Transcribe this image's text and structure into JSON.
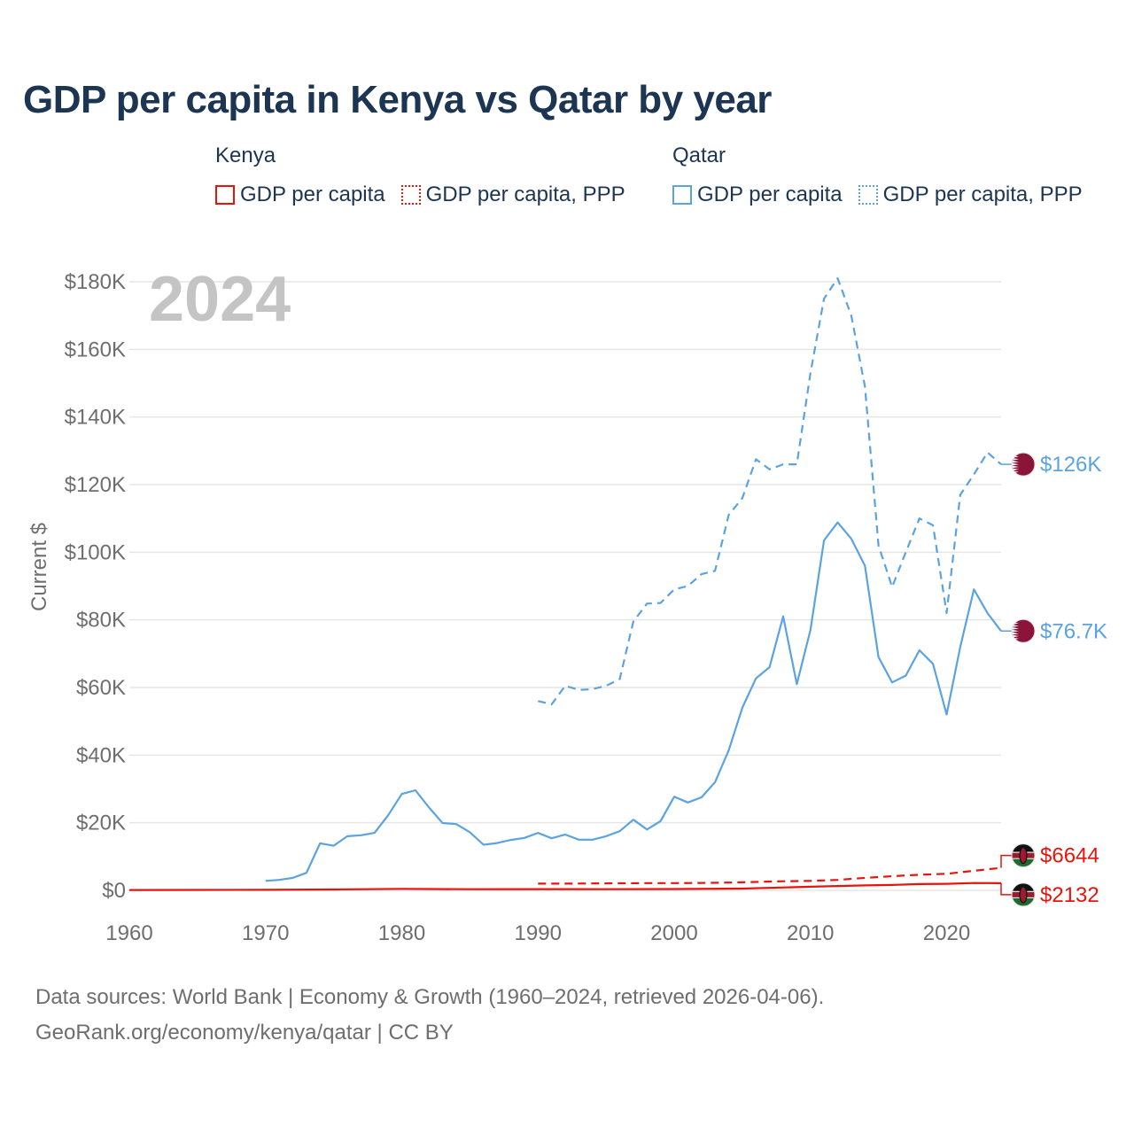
{
  "title": "GDP per capita in Kenya vs Qatar by year",
  "legend": {
    "kenya": {
      "title": "Kenya",
      "items": [
        {
          "label": "GDP per capita",
          "style": "solid",
          "color": "#e8140c"
        },
        {
          "label": "GDP per capita, PPP",
          "style": "dotted",
          "color": "#e8140c"
        }
      ]
    },
    "qatar": {
      "title": "Qatar",
      "items": [
        {
          "label": "GDP per capita",
          "style": "solid",
          "color": "#5ba3e0"
        },
        {
          "label": "GDP per capita, PPP",
          "style": "dotted",
          "color": "#5ba3e0"
        }
      ]
    }
  },
  "year_watermark": "2024",
  "footer": {
    "line1": "Data sources: World Bank | Economy & Growth (1960–2024, retrieved 2026-04-06).",
    "line2": "GeoRank.org/economy/kenya/qatar | CC BY"
  },
  "chart_data": {
    "type": "line",
    "ylabel": "Current $",
    "xlabel": "",
    "xlim": [
      1960,
      2025
    ],
    "ylim": [
      0,
      180000
    ],
    "x_ticks": [
      1960,
      1970,
      1980,
      1990,
      2000,
      2010,
      2020
    ],
    "x_tick_labels": [
      "1960",
      "1970",
      "1980",
      "1990",
      "2000",
      "2010",
      "2020"
    ],
    "y_ticks": [
      0,
      20000,
      40000,
      60000,
      80000,
      100000,
      120000,
      140000,
      160000,
      180000
    ],
    "y_tick_labels": [
      "$0",
      "$20K",
      "$40K",
      "$60K",
      "$80K",
      "$100K",
      "$120K",
      "$140K",
      "$160K",
      "$180K"
    ],
    "grid": true,
    "series": [
      {
        "name": "Qatar GDP per capita, PPP",
        "country": "Qatar",
        "dash": true,
        "color": "#5ba3e0",
        "end_label": "$126K",
        "flag": "qatar",
        "x": [
          1990,
          1991,
          1992,
          1993,
          1994,
          1995,
          1996,
          1997,
          1998,
          1999,
          2000,
          2001,
          2002,
          2003,
          2004,
          2005,
          2006,
          2007,
          2008,
          2009,
          2010,
          2011,
          2012,
          2013,
          2014,
          2015,
          2016,
          2017,
          2018,
          2019,
          2020,
          2021,
          2022,
          2023,
          2024
        ],
        "values": [
          56000,
          55000,
          60500,
          59300,
          59500,
          60500,
          62500,
          79500,
          84800,
          85000,
          89000,
          90000,
          93500,
          94500,
          111000,
          116000,
          127500,
          124500,
          126000,
          126000,
          153000,
          175000,
          181000,
          170000,
          149000,
          102000,
          89700,
          100000,
          110000,
          108000,
          82000,
          117000,
          123000,
          129500,
          126000
        ]
      },
      {
        "name": "Qatar GDP per capita",
        "country": "Qatar",
        "dash": false,
        "color": "#5ba3e0",
        "end_label": "$76.7K",
        "flag": "qatar",
        "x": [
          1970,
          1971,
          1972,
          1973,
          1974,
          1975,
          1976,
          1977,
          1978,
          1979,
          1980,
          1981,
          1982,
          1983,
          1984,
          1985,
          1986,
          1987,
          1988,
          1989,
          1990,
          1991,
          1992,
          1993,
          1994,
          1995,
          1996,
          1997,
          1998,
          1999,
          2000,
          2001,
          2002,
          2003,
          2004,
          2005,
          2006,
          2007,
          2008,
          2009,
          2010,
          2011,
          2012,
          2013,
          2014,
          2015,
          2016,
          2017,
          2018,
          2019,
          2020,
          2021,
          2022,
          2023,
          2024
        ],
        "values": [
          2800,
          3100,
          3700,
          5200,
          13900,
          13200,
          16000,
          16300,
          17000,
          22200,
          28500,
          29600,
          24500,
          19900,
          19600,
          17200,
          13500,
          14000,
          14900,
          15500,
          17000,
          15400,
          16500,
          15000,
          15000,
          16000,
          17500,
          20900,
          18000,
          20500,
          27700,
          26000,
          27500,
          32000,
          41400,
          54000,
          62700,
          66000,
          81000,
          61000,
          77000,
          103500,
          108800,
          104000,
          96000,
          69000,
          61500,
          63500,
          71000,
          67000,
          52000,
          72000,
          89000,
          82000,
          76700
        ]
      },
      {
        "name": "Kenya GDP per capita, PPP",
        "country": "Kenya",
        "dash": true,
        "color": "#e8140c",
        "end_label": "$6644",
        "flag": "kenya",
        "x": [
          1990,
          1992,
          1994,
          1996,
          1998,
          2000,
          2002,
          2004,
          2006,
          2008,
          2010,
          2012,
          2014,
          2016,
          2018,
          2020,
          2022,
          2024
        ],
        "values": [
          2000,
          2000,
          2050,
          2100,
          2150,
          2150,
          2200,
          2300,
          2500,
          2700,
          2800,
          3100,
          3700,
          4200,
          4600,
          4900,
          5800,
          6644
        ]
      },
      {
        "name": "Kenya GDP per capita",
        "country": "Kenya",
        "dash": false,
        "color": "#e8140c",
        "end_label": "$2132",
        "flag": "kenya",
        "x": [
          1960,
          1965,
          1970,
          1975,
          1980,
          1985,
          1990,
          1995,
          2000,
          2005,
          2010,
          2012,
          2014,
          2016,
          2018,
          2020,
          2022,
          2024
        ],
        "values": [
          100,
          120,
          160,
          250,
          450,
          350,
          360,
          330,
          400,
          520,
          1080,
          1280,
          1480,
          1600,
          1850,
          1950,
          2170,
          2132
        ]
      }
    ]
  }
}
